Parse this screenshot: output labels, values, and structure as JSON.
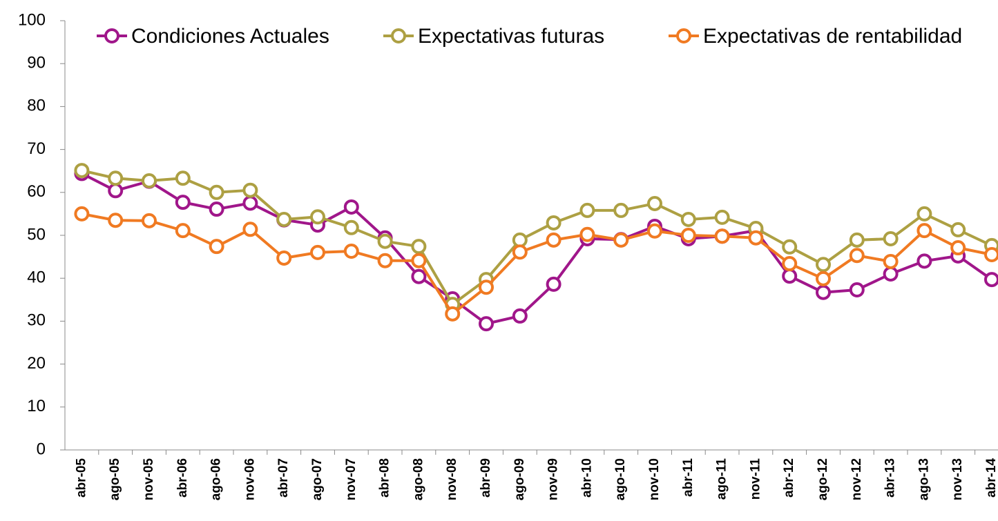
{
  "chart_data": {
    "type": "line",
    "categories": [
      "abr-05",
      "ago-05",
      "nov-05",
      "abr-06",
      "ago-06",
      "nov-06",
      "abr-07",
      "ago-07",
      "nov-07",
      "abr-08",
      "ago-08",
      "nov-08",
      "abr-09",
      "ago-09",
      "nov-09",
      "abr-10",
      "ago-10",
      "nov-10",
      "abr-11",
      "ago-11",
      "nov-11",
      "abr-12",
      "ago-12",
      "nov-12",
      "abr-13",
      "ago-13",
      "nov-13",
      "abr-14"
    ],
    "series": [
      {
        "name": "Condiciones Actuales",
        "color": "#a0168a",
        "values": [
          64.4,
          60.4,
          62.6,
          57.7,
          56.1,
          57.5,
          53.6,
          52.4,
          56.6,
          49.4,
          40.4,
          35.2,
          29.4,
          31.2,
          38.6,
          49.2,
          49.0,
          52.1,
          49.2,
          49.8,
          51.1,
          40.5,
          36.7,
          37.3,
          41.0,
          44.0,
          45.2,
          39.7
        ]
      },
      {
        "name": "Expectativas futuras",
        "color": "#ada043",
        "values": [
          65.1,
          63.3,
          62.7,
          63.3,
          60.0,
          60.5,
          53.7,
          54.3,
          51.8,
          48.6,
          47.4,
          33.9,
          39.7,
          48.9,
          52.9,
          55.8,
          55.8,
          57.4,
          53.7,
          54.2,
          51.6,
          47.3,
          43.2,
          48.9,
          49.2,
          55.0,
          51.3,
          47.6
        ]
      },
      {
        "name": "Expectativas de rentabilidad",
        "color": "#f07a22",
        "values": [
          55.0,
          53.5,
          53.4,
          51.1,
          47.4,
          51.4,
          44.7,
          46.0,
          46.3,
          44.1,
          44.1,
          31.7,
          37.9,
          46.1,
          48.9,
          50.2,
          48.9,
          51.0,
          50.0,
          49.8,
          49.4,
          43.4,
          39.9,
          45.3,
          43.9,
          51.1,
          47.1,
          45.5
        ]
      }
    ],
    "ylim": [
      0,
      100
    ],
    "yticks": [
      0,
      10,
      20,
      30,
      40,
      50,
      60,
      70,
      80,
      90,
      100
    ],
    "legend": "top",
    "grid": false
  }
}
